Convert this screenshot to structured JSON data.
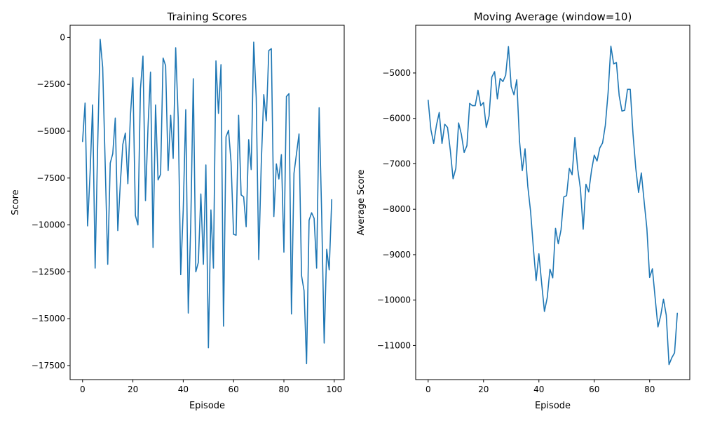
{
  "chart_data": [
    {
      "type": "line",
      "title": "Training Scores",
      "xlabel": "Episode",
      "ylabel": "Score",
      "xlim": [
        -4.95,
        103.95
      ],
      "ylim": [
        -18250,
        650
      ],
      "xticks": [
        0,
        20,
        40,
        60,
        80,
        100
      ],
      "xtick_labels": [
        "0",
        "20",
        "40",
        "60",
        "80",
        "100"
      ],
      "yticks": [
        0,
        -2500,
        -5000,
        -7500,
        -10000,
        -12500,
        -15000,
        -17500
      ],
      "ytick_labels": [
        "0",
        "−2500",
        "−5000",
        "−7500",
        "−10000",
        "−12500",
        "−15000",
        "−17500"
      ],
      "grid": false,
      "legend": "none",
      "series": [
        {
          "color": "#1f77b4",
          "x": [
            0,
            1,
            2,
            3,
            4,
            5,
            6,
            7,
            8,
            9,
            10,
            11,
            12,
            13,
            14,
            15,
            16,
            17,
            18,
            19,
            20,
            21,
            22,
            23,
            24,
            25,
            26,
            27,
            28,
            29,
            30,
            31,
            32,
            33,
            34,
            35,
            36,
            37,
            38,
            39,
            40,
            41,
            42,
            43,
            44,
            45,
            46,
            47,
            48,
            49,
            50,
            51,
            52,
            53,
            54,
            55,
            56,
            57,
            58,
            59,
            60,
            61,
            62,
            63,
            64,
            65,
            66,
            67,
            68,
            69,
            70,
            71,
            72,
            73,
            74,
            75,
            76,
            77,
            78,
            79,
            80,
            81,
            82,
            83,
            84,
            85,
            86,
            87,
            88,
            89,
            90,
            91,
            92,
            93,
            94,
            95,
            96,
            97,
            98,
            99
          ],
          "values": [
            -5550,
            -3500,
            -10050,
            -7200,
            -3600,
            -12300,
            -5800,
            -100,
            -1600,
            -6800,
            -12100,
            -6700,
            -6200,
            -4300,
            -10300,
            -7800,
            -5700,
            -5100,
            -7800,
            -4200,
            -2150,
            -9500,
            -10000,
            -2750,
            -1000,
            -8700,
            -4800,
            -1850,
            -11200,
            -3600,
            -7600,
            -7300,
            -1100,
            -1500,
            -7100,
            -4150,
            -6450,
            -550,
            -4300,
            -12650,
            -9200,
            -3850,
            -14700,
            -9900,
            -2200,
            -12500,
            -12000,
            -8350,
            -12100,
            -6800,
            -16550,
            -9200,
            -12300,
            -1250,
            -4050,
            -1450,
            -15400,
            -5300,
            -4950,
            -6650,
            -10500,
            -10550,
            -4150,
            -8400,
            -8500,
            -10100,
            -5450,
            -7050,
            -250,
            -3200,
            -11850,
            -6750,
            -3050,
            -4450,
            -700,
            -600,
            -9550,
            -6750,
            -7550,
            -6250,
            -11450,
            -3150,
            -3000,
            -14750,
            -7250,
            -6200,
            -5150,
            -12700,
            -13500,
            -17400,
            -9750,
            -9350,
            -9650,
            -12300,
            -3750,
            -9400,
            -16300,
            -11300,
            -12400,
            -8650
          ]
        }
      ]
    },
    {
      "type": "line",
      "title": "Moving Average (window=10)",
      "xlabel": "Episode",
      "ylabel": "Average Score",
      "xlim": [
        -4.5,
        94.5
      ],
      "ylim": [
        -11750,
        -3950
      ],
      "xticks": [
        0,
        20,
        40,
        60,
        80
      ],
      "xtick_labels": [
        "0",
        "20",
        "40",
        "60",
        "80"
      ],
      "yticks": [
        -5000,
        -6000,
        -7000,
        -8000,
        -9000,
        -10000,
        -11000
      ],
      "ytick_labels": [
        "−5000",
        "−6000",
        "−7000",
        "−8000",
        "−9000",
        "−10000",
        "−11000"
      ],
      "grid": false,
      "legend": "none",
      "series": [
        {
          "color": "#1f77b4",
          "x": [
            0,
            1,
            2,
            3,
            4,
            5,
            6,
            7,
            8,
            9,
            10,
            11,
            12,
            13,
            14,
            15,
            16,
            17,
            18,
            19,
            20,
            21,
            22,
            23,
            24,
            25,
            26,
            27,
            28,
            29,
            30,
            31,
            32,
            33,
            34,
            35,
            36,
            37,
            38,
            39,
            40,
            41,
            42,
            43,
            44,
            45,
            46,
            47,
            48,
            49,
            50,
            51,
            52,
            53,
            54,
            55,
            56,
            57,
            58,
            59,
            60,
            61,
            62,
            63,
            64,
            65,
            66,
            67,
            68,
            69,
            70,
            71,
            72,
            73,
            74,
            75,
            76,
            77,
            78,
            79,
            80,
            81,
            82,
            83,
            84,
            85,
            86,
            87,
            88,
            89,
            90
          ],
          "values": [
            -5600,
            -6250,
            -6550,
            -6150,
            -5870,
            -6550,
            -6130,
            -6200,
            -6700,
            -7330,
            -7100,
            -6100,
            -6350,
            -6750,
            -6600,
            -5670,
            -5720,
            -5720,
            -5380,
            -5720,
            -5650,
            -6200,
            -5950,
            -5090,
            -4970,
            -5570,
            -5120,
            -5190,
            -5050,
            -4420,
            -5300,
            -5480,
            -5150,
            -6500,
            -7150,
            -6670,
            -7500,
            -8050,
            -8850,
            -9570,
            -8980,
            -9630,
            -10250,
            -9950,
            -9320,
            -9510,
            -8420,
            -8760,
            -8450,
            -7730,
            -7700,
            -7100,
            -7240,
            -6420,
            -7100,
            -7550,
            -8440,
            -7450,
            -7620,
            -7150,
            -6810,
            -6940,
            -6650,
            -6540,
            -6150,
            -5430,
            -4410,
            -4800,
            -4770,
            -5500,
            -5840,
            -5820,
            -5360,
            -5360,
            -6350,
            -7100,
            -7630,
            -7200,
            -7820,
            -8420,
            -9500,
            -9310,
            -9960,
            -10590,
            -10340,
            -9980,
            -10330,
            -11420,
            -11270,
            -11160,
            -10290
          ]
        }
      ]
    }
  ]
}
